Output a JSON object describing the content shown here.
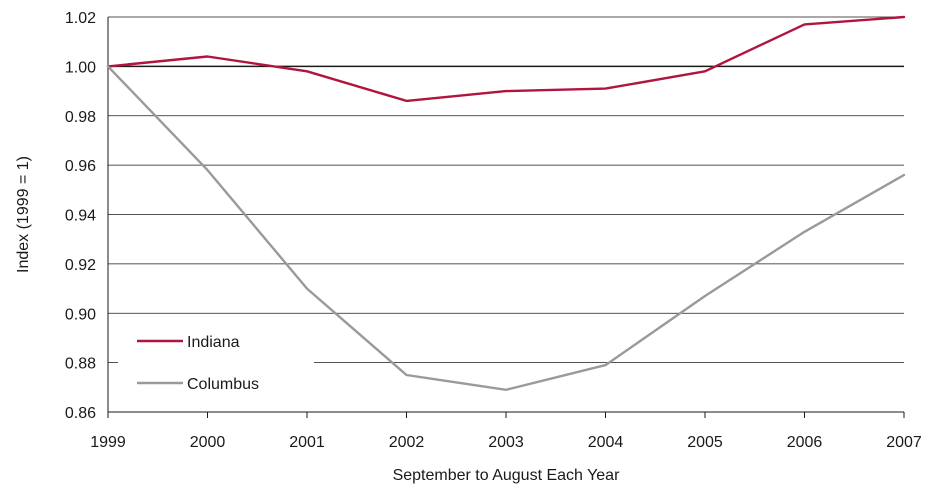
{
  "chart_data": {
    "type": "line",
    "xlabel": "September to August Each Year",
    "ylabel": "Index (1999 = 1)",
    "x": [
      "1999",
      "2000",
      "2001",
      "2002",
      "2003",
      "2004",
      "2005",
      "2006",
      "2007"
    ],
    "ylim": [
      0.86,
      1.02
    ],
    "yticks": [
      "0.86",
      "0.88",
      "0.90",
      "0.92",
      "0.94",
      "0.96",
      "0.98",
      "1.00",
      "1.02"
    ],
    "reference_line": 1.0,
    "grid": true,
    "legend_position": "bottom-left",
    "series": [
      {
        "name": "Indiana",
        "color": "#b0153f",
        "values": [
          1.0,
          1.004,
          0.998,
          0.986,
          0.99,
          0.991,
          0.998,
          1.017,
          1.02
        ]
      },
      {
        "name": "Columbus",
        "color": "#9a9a9a",
        "values": [
          1.0,
          0.958,
          0.91,
          0.875,
          0.869,
          0.879,
          0.907,
          0.933,
          0.956
        ]
      }
    ]
  }
}
